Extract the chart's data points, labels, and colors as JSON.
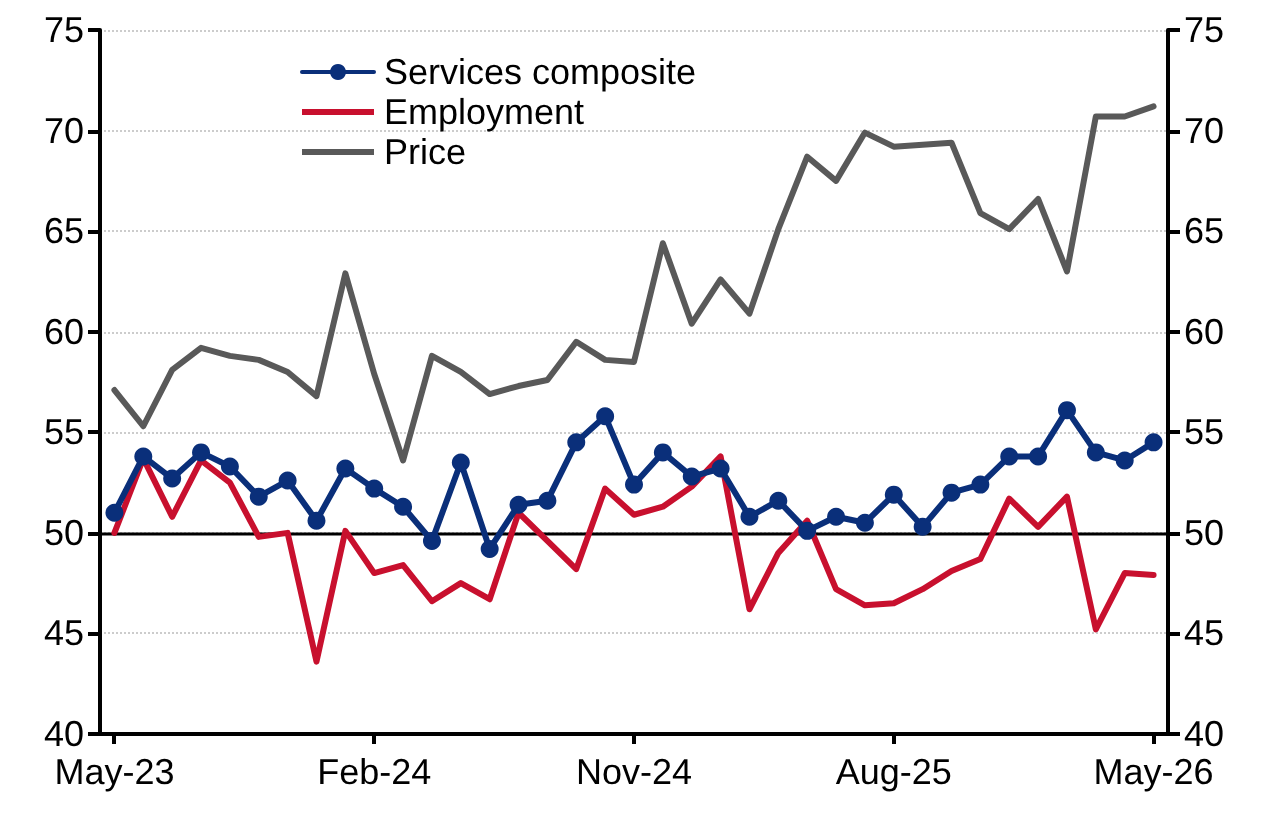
{
  "chart_data": {
    "type": "line",
    "categories": [
      "May-23",
      null,
      null,
      null,
      null,
      null,
      null,
      null,
      null,
      "Feb-24",
      null,
      null,
      null,
      null,
      null,
      null,
      null,
      null,
      "Nov-24",
      null,
      null,
      null,
      null,
      null,
      null,
      null,
      null,
      "Aug-25",
      null,
      null,
      null,
      null,
      null,
      null,
      null,
      null,
      "May-26"
    ],
    "series": [
      {
        "name": "Services composite",
        "color": "#0a2f7a",
        "marker": "circle",
        "values": [
          51.0,
          53.8,
          52.7,
          54.0,
          53.3,
          51.8,
          52.6,
          50.6,
          53.2,
          52.2,
          51.3,
          49.6,
          53.5,
          49.2,
          51.4,
          51.6,
          54.5,
          55.8,
          52.4,
          54.0,
          52.8,
          53.2,
          50.8,
          51.6,
          50.1,
          50.8,
          50.5,
          51.9,
          50.3,
          52.0,
          52.4,
          53.8,
          53.8,
          56.1,
          54.0,
          53.6,
          54.5
        ]
      },
      {
        "name": "Employment",
        "color": "#c8102e",
        "marker": "none",
        "values": [
          50.0,
          53.7,
          50.8,
          53.6,
          52.5,
          49.8,
          50.0,
          43.6,
          50.1,
          48.0,
          48.4,
          46.6,
          47.5,
          46.7,
          51.0,
          49.6,
          48.2,
          52.2,
          50.9,
          51.3,
          52.3,
          53.8,
          46.2,
          49.0,
          50.6,
          47.2,
          46.4,
          46.5,
          47.2,
          48.1,
          48.7,
          51.7,
          50.3,
          51.8,
          45.2,
          48.0,
          47.9
        ]
      },
      {
        "name": "Price",
        "color": "#595959",
        "marker": "none",
        "values": [
          57.1,
          55.3,
          58.1,
          59.2,
          58.8,
          58.6,
          58.0,
          56.8,
          62.9,
          57.9,
          53.6,
          58.8,
          58.0,
          56.9,
          57.3,
          57.6,
          59.5,
          58.6,
          58.5,
          64.4,
          60.4,
          62.6,
          60.9,
          65.1,
          68.7,
          67.5,
          69.9,
          69.2,
          69.3,
          69.4,
          65.9,
          65.1,
          66.6,
          63.0,
          70.7,
          70.7,
          71.2
        ]
      }
    ],
    "ylim": [
      40,
      75
    ],
    "yticks": [
      40,
      45,
      50,
      55,
      60,
      65,
      70,
      75
    ],
    "y2lim": [
      40,
      75
    ],
    "y2ticks": [
      40,
      45,
      50,
      55,
      60,
      65,
      70,
      75
    ],
    "ref_lines": [
      {
        "axis": "y",
        "value": 50,
        "color": "#000000"
      }
    ],
    "grid": "y",
    "legend": "top left",
    "line_style": "solid"
  }
}
